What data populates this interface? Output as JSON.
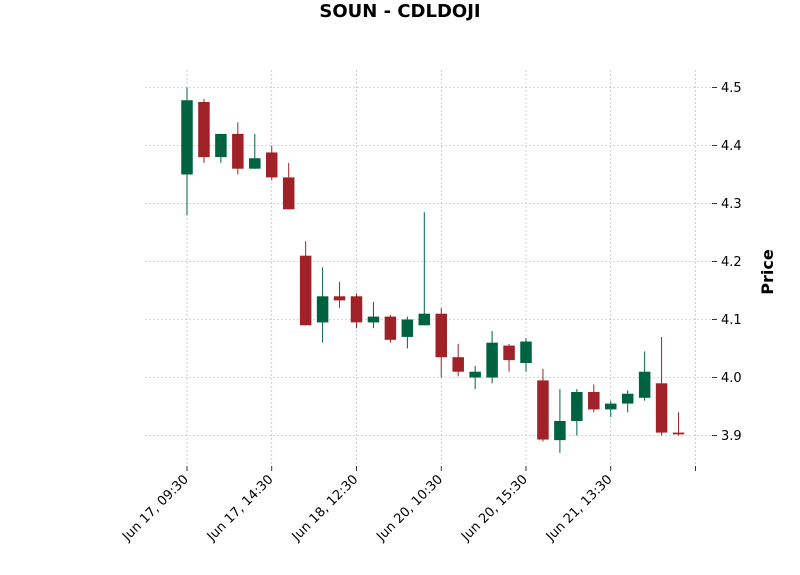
{
  "chart_data": {
    "type": "candlestick",
    "title": "SOUN - CDLDOJI",
    "xlabel": "",
    "ylabel": "Price",
    "ylim": [
      3.84,
      4.53
    ],
    "yticks": [
      3.9,
      4.0,
      4.1,
      4.2,
      4.3,
      4.4,
      4.5
    ],
    "grid": true,
    "xtick_labels": [
      {
        "index": 0,
        "label": "Jun 17, 09:30"
      },
      {
        "index": 5,
        "label": "Jun 17, 14:30"
      },
      {
        "index": 10,
        "label": "Jun 18, 12:30"
      },
      {
        "index": 15,
        "label": "Jun 20, 10:30"
      },
      {
        "index": 20,
        "label": "Jun 20, 15:30"
      },
      {
        "index": 25,
        "label": "Jun 21, 13:30"
      },
      {
        "index": 30,
        "label": ""
      }
    ],
    "colors": {
      "up": "#006340",
      "down": "#a02128"
    },
    "candles": [
      {
        "open": 4.35,
        "high": 4.5,
        "low": 4.28,
        "close": 4.478
      },
      {
        "open": 4.475,
        "high": 4.48,
        "low": 4.37,
        "close": 4.38
      },
      {
        "open": 4.38,
        "high": 4.42,
        "low": 4.37,
        "close": 4.42
      },
      {
        "open": 4.42,
        "high": 4.44,
        "low": 4.35,
        "close": 4.36
      },
      {
        "open": 4.36,
        "high": 4.42,
        "low": 4.36,
        "close": 4.378
      },
      {
        "open": 4.388,
        "high": 4.4,
        "low": 4.34,
        "close": 4.345
      },
      {
        "open": 4.345,
        "high": 4.37,
        "low": 4.29,
        "close": 4.29
      },
      {
        "open": 4.21,
        "high": 4.235,
        "low": 4.09,
        "close": 4.09
      },
      {
        "open": 4.095,
        "high": 4.19,
        "low": 4.06,
        "close": 4.14
      },
      {
        "open": 4.14,
        "high": 4.165,
        "low": 4.12,
        "close": 4.133
      },
      {
        "open": 4.14,
        "high": 4.145,
        "low": 4.085,
        "close": 4.095
      },
      {
        "open": 4.095,
        "high": 4.13,
        "low": 4.085,
        "close": 4.105
      },
      {
        "open": 4.105,
        "high": 4.108,
        "low": 4.06,
        "close": 4.065
      },
      {
        "open": 4.07,
        "high": 4.105,
        "low": 4.05,
        "close": 4.1
      },
      {
        "open": 4.09,
        "high": 4.285,
        "low": 4.09,
        "close": 4.11
      },
      {
        "open": 4.11,
        "high": 4.12,
        "low": 4.0,
        "close": 4.035
      },
      {
        "open": 4.035,
        "high": 4.058,
        "low": 4.002,
        "close": 4.01
      },
      {
        "open": 4.0,
        "high": 4.02,
        "low": 3.98,
        "close": 4.01
      },
      {
        "open": 4.0,
        "high": 4.08,
        "low": 3.99,
        "close": 4.06
      },
      {
        "open": 4.055,
        "high": 4.058,
        "low": 4.01,
        "close": 4.03
      },
      {
        "open": 4.025,
        "high": 4.068,
        "low": 4.01,
        "close": 4.062
      },
      {
        "open": 3.995,
        "high": 4.015,
        "low": 3.89,
        "close": 3.893
      },
      {
        "open": 3.892,
        "high": 3.98,
        "low": 3.87,
        "close": 3.925
      },
      {
        "open": 3.925,
        "high": 3.98,
        "low": 3.9,
        "close": 3.975
      },
      {
        "open": 3.975,
        "high": 3.988,
        "low": 3.94,
        "close": 3.945
      },
      {
        "open": 3.945,
        "high": 3.96,
        "low": 3.932,
        "close": 3.955
      },
      {
        "open": 3.955,
        "high": 3.978,
        "low": 3.94,
        "close": 3.972
      },
      {
        "open": 3.965,
        "high": 4.045,
        "low": 3.96,
        "close": 4.01
      },
      {
        "open": 3.99,
        "high": 4.07,
        "low": 3.9,
        "close": 3.905
      },
      {
        "open": 3.905,
        "high": 3.94,
        "low": 3.9,
        "close": 3.902
      }
    ]
  }
}
